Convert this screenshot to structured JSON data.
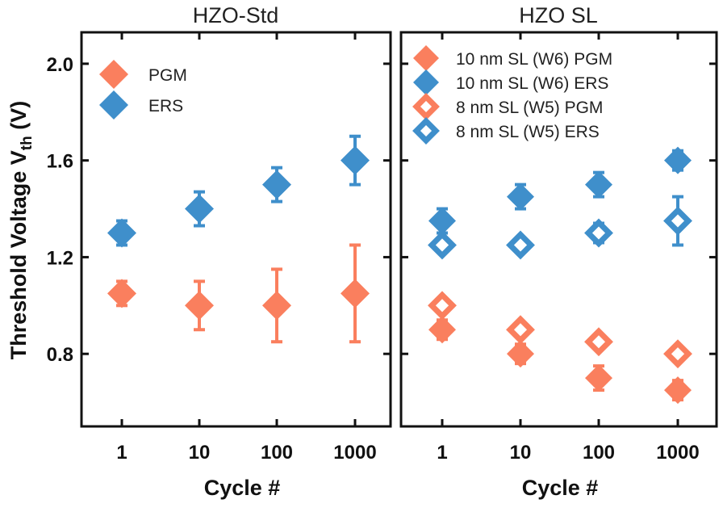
{
  "colors": {
    "pgm": "#FA7F5E",
    "ers": "#3F8FCB",
    "axis": "#111111"
  },
  "chart_data": [
    {
      "type": "scatter",
      "title": "HZO-Std",
      "xlabel": "Cycle #",
      "ylabel": "Threshold Voltage V",
      "ylabel_sub": "th",
      "ylabel_unit": " (V)",
      "x_scale": "log",
      "categories": [
        "1",
        "10",
        "100",
        "1000"
      ],
      "yticks": [
        "0.8",
        "1.2",
        "1.6",
        "2.0"
      ],
      "ylim": [
        0.5,
        2.13
      ],
      "legend_position": "top-left",
      "series": [
        {
          "name": "PGM",
          "color_key": "pgm",
          "filled": true,
          "values": [
            1.05,
            1.0,
            1.0,
            1.05
          ],
          "errors": [
            0.05,
            0.1,
            0.15,
            0.2
          ]
        },
        {
          "name": "ERS",
          "color_key": "ers",
          "filled": true,
          "values": [
            1.3,
            1.4,
            1.5,
            1.6
          ],
          "errors": [
            0.05,
            0.07,
            0.07,
            0.1
          ]
        }
      ]
    },
    {
      "type": "scatter",
      "title": "HZO SL",
      "xlabel": "Cycle #",
      "x_scale": "log",
      "categories": [
        "1",
        "10",
        "100",
        "1000"
      ],
      "ylim": [
        0.5,
        2.13
      ],
      "legend_position": "top-left",
      "series": [
        {
          "name": "10 nm SL (W6) PGM",
          "color_key": "pgm",
          "filled": true,
          "values": [
            0.9,
            0.8,
            0.7,
            0.65
          ],
          "errors": [
            0.04,
            0.04,
            0.05,
            0.04
          ]
        },
        {
          "name": "10 nm SL (W6) ERS",
          "color_key": "ers",
          "filled": true,
          "values": [
            1.35,
            1.45,
            1.5,
            1.6
          ],
          "errors": [
            0.05,
            0.05,
            0.05,
            0.04
          ]
        },
        {
          "name": " 8 nm SL (W5) PGM",
          "color_key": "pgm",
          "filled": false,
          "values": [
            1.0,
            0.9,
            0.85,
            0.8
          ],
          "errors": [
            0.02,
            0.02,
            0.02,
            0.02
          ]
        },
        {
          "name": " 8 nm SL (W5) ERS",
          "color_key": "ers",
          "filled": false,
          "values": [
            1.25,
            1.25,
            1.3,
            1.35
          ],
          "errors": [
            0.03,
            0.03,
            0.04,
            0.1
          ]
        }
      ]
    }
  ]
}
